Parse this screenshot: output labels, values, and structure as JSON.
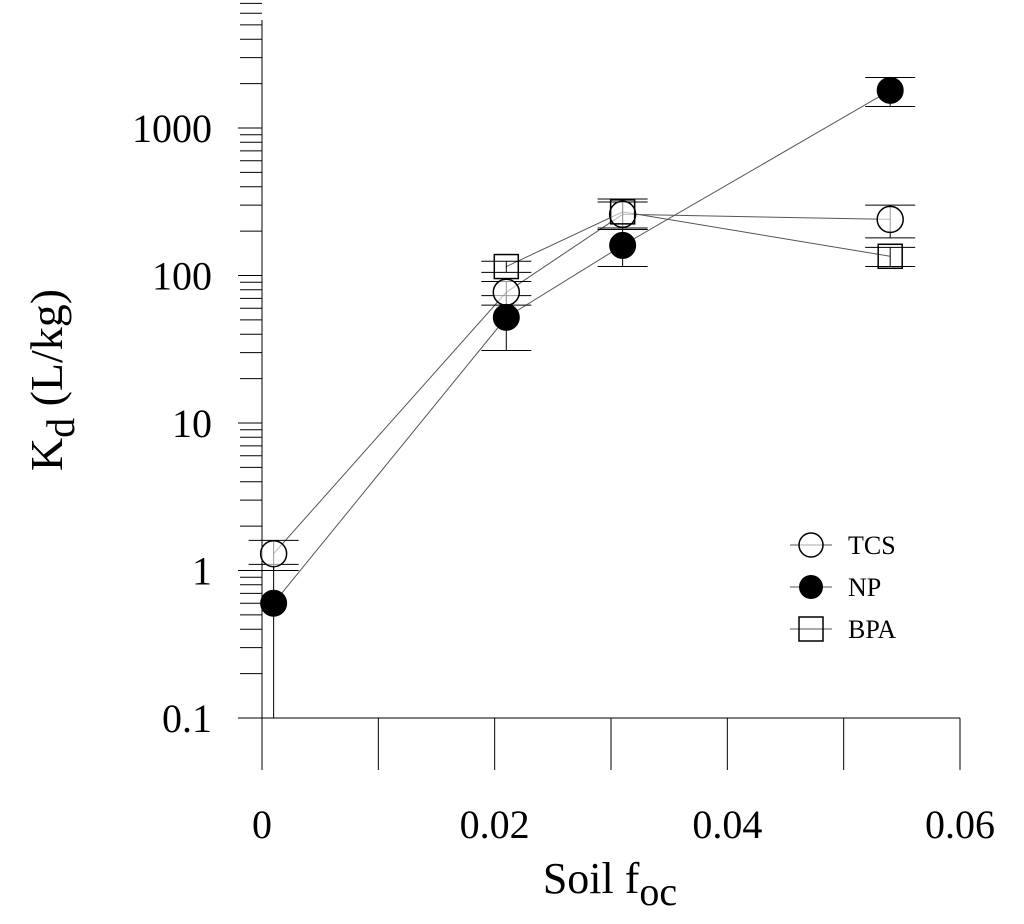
{
  "chart_data": {
    "type": "scatter",
    "title": "",
    "xlabel": {
      "main": "Soil f",
      "sub": "oc"
    },
    "ylabel": {
      "main": "K",
      "sub": "d",
      "unit": " (L/kg)"
    },
    "xlim": [
      0,
      0.06
    ],
    "ylim": [
      0.1,
      10000
    ],
    "yscale": "log",
    "xticks": [
      0,
      0.01,
      0.02,
      0.03,
      0.04,
      0.05,
      0.06
    ],
    "xtick_labels": [
      {
        "value": 0,
        "label": "0"
      },
      {
        "value": 0.02,
        "label": "0.02"
      },
      {
        "value": 0.04,
        "label": "0.04"
      },
      {
        "value": 0.06,
        "label": "0.06"
      }
    ],
    "ytick_labels": [
      {
        "value": 0.1,
        "label": "0.1"
      },
      {
        "value": 1,
        "label": "1"
      },
      {
        "value": 10,
        "label": "10"
      },
      {
        "value": 100,
        "label": "100"
      },
      {
        "value": 1000,
        "label": "1000"
      }
    ],
    "legend_position": "right",
    "series": [
      {
        "name": "TCS",
        "marker": "open-circle",
        "x": [
          0.001,
          0.021,
          0.031,
          0.054
        ],
        "y": [
          1.3,
          77,
          260,
          240
        ],
        "err": [
          0.3,
          14,
          55,
          60
        ]
      },
      {
        "name": "NP",
        "marker": "filled-circle",
        "x": [
          0.001,
          0.021,
          0.031,
          0.054
        ],
        "y": [
          0.6,
          52,
          160,
          1800
        ],
        "err": [
          0.5,
          21,
          45,
          400
        ]
      },
      {
        "name": "BPA",
        "marker": "open-square",
        "x": [
          0.001,
          0.021,
          0.031,
          0.054
        ],
        "y": [
          null,
          115,
          270,
          135
        ],
        "err": [
          null,
          10,
          60,
          20
        ]
      }
    ]
  }
}
